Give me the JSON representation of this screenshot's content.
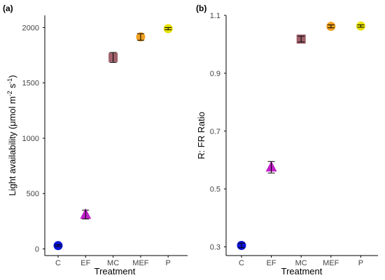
{
  "chart_data": [
    {
      "type": "scatter",
      "panel": "(a)",
      "xlabel": "Treatment",
      "ylabel_main": "Light availability (μmol m",
      "ylabel_sup1": "-2",
      "ylabel_mid": " s",
      "ylabel_sup2": "-1",
      "ylabel_end": ")",
      "categories": [
        "C",
        "EF",
        "MC",
        "MEF",
        "P"
      ],
      "ylim": [
        -60,
        2110
      ],
      "yticks": [
        0,
        500,
        1000,
        1500,
        2000
      ],
      "yticks_labels": [
        "0",
        "500",
        "1000",
        "1500",
        "2000"
      ],
      "points": [
        {
          "category": "C",
          "value": 30,
          "err": 8,
          "shape": "circle",
          "color": "#0a14d8"
        },
        {
          "category": "EF",
          "value": 310,
          "err": 40,
          "shape": "triangle",
          "color": "#c020c8"
        },
        {
          "category": "MC",
          "value": 1730,
          "err": 45,
          "shape": "square",
          "color": "#a0606a"
        },
        {
          "category": "MEF",
          "value": 1915,
          "err": 30,
          "shape": "circle",
          "color": "#f0a020"
        },
        {
          "category": "P",
          "value": 1990,
          "err": 10,
          "shape": "circle",
          "color": "#e8e000"
        }
      ]
    },
    {
      "type": "scatter",
      "panel": "(b)",
      "xlabel": "Treatment",
      "ylabel": "R: FR Ratio",
      "categories": [
        "C",
        "EF",
        "MC",
        "MEF",
        "P"
      ],
      "ylim": [
        0.27,
        1.1
      ],
      "yticks": [
        0.3,
        0.5,
        0.7,
        0.9,
        1.1
      ],
      "yticks_labels": [
        "0.3",
        "0.5",
        "0.7",
        "0.9",
        "1.1"
      ],
      "points": [
        {
          "category": "C",
          "value": 0.305,
          "err": 0.008,
          "shape": "circle",
          "color": "#0a14d8"
        },
        {
          "category": "EF",
          "value": 0.575,
          "err": 0.02,
          "shape": "triangle",
          "color": "#c020c8"
        },
        {
          "category": "MC",
          "value": 1.018,
          "err": 0.01,
          "shape": "square",
          "color": "#a0606a"
        },
        {
          "category": "MEF",
          "value": 1.062,
          "err": 0.005,
          "shape": "circle",
          "color": "#f0a020"
        },
        {
          "category": "P",
          "value": 1.063,
          "err": 0.004,
          "shape": "circle",
          "color": "#e8e000"
        }
      ]
    }
  ]
}
